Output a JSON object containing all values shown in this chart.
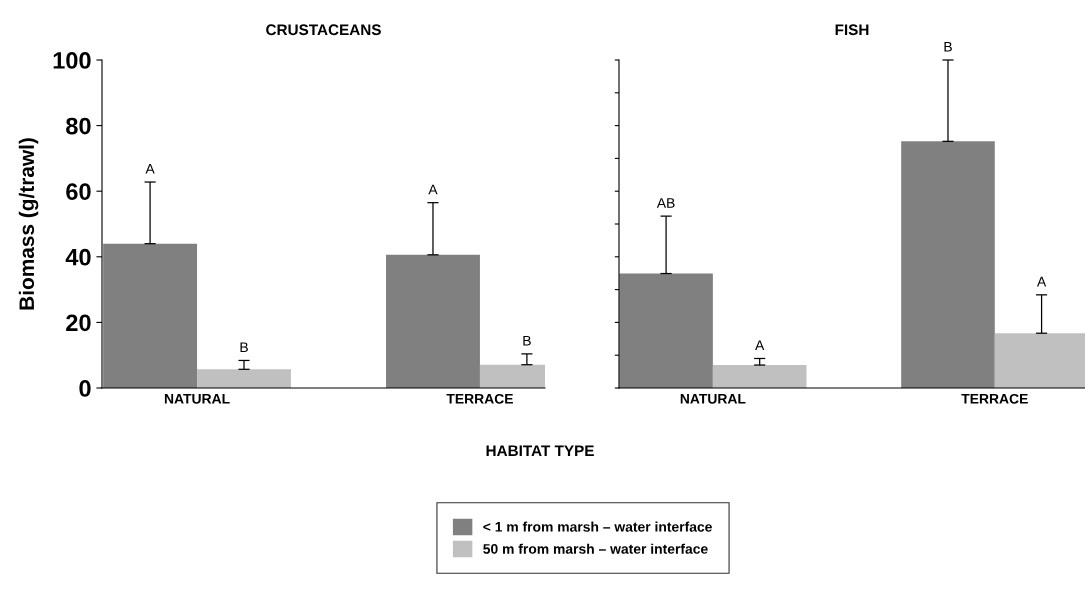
{
  "chart_data": [
    {
      "type": "bar",
      "title": "CRUSTACEANS",
      "xlabel": "HABITAT TYPE",
      "ylabel": "Biomass (g/trawl)",
      "categories": [
        "NATURAL",
        "TERRACE"
      ],
      "ylim": [
        0,
        100
      ],
      "yticks": [
        0,
        20,
        40,
        60,
        80,
        100
      ],
      "legend": "bottom",
      "grid": false,
      "series": [
        {
          "name": "< 1 m from marsh – water interface",
          "color": "#808080",
          "values": [
            44.0,
            40.6
          ],
          "errors": [
            [
              44.0,
              62.8
            ],
            [
              40.6,
              56.5
            ]
          ]
        },
        {
          "name": "50 m from marsh – water interface",
          "color": "#c0c0c0",
          "values": [
            5.7,
            7.1
          ],
          "errors": [
            [
              5.7,
              8.4
            ],
            [
              7.1,
              10.4
            ]
          ]
        }
      ],
      "annotations": [
        "A",
        "A",
        "B",
        "B"
      ]
    },
    {
      "type": "bar",
      "title": "FISH",
      "categories": [
        "NATURAL",
        "TERRACE"
      ],
      "ylim": [
        0,
        100
      ],
      "tick_labels": "x",
      "grid": false,
      "yticks": [
        {
          "value": 0,
          "label": null
        },
        {
          "value": 10,
          "label": null
        },
        {
          "value": 20,
          "label": null
        },
        {
          "value": 30,
          "label": null
        },
        {
          "value": 40,
          "label": null
        },
        {
          "value": 50,
          "label": null
        },
        {
          "value": 60,
          "label": null
        },
        {
          "value": 70,
          "label": null
        },
        {
          "value": 80,
          "label": null
        },
        {
          "value": 90,
          "label": null
        },
        {
          "value": 100,
          "label": null
        }
      ],
      "series": [
        {
          "color": "#808080",
          "values": [
            34.9,
            75.2
          ],
          "errors": [
            [
              34.9,
              52.4
            ],
            [
              75.2,
              100
            ]
          ]
        },
        {
          "color": "#c0c0c0",
          "values": [
            7.0,
            16.7
          ],
          "errors": [
            [
              7.0,
              9.0
            ],
            [
              16.7,
              28.4
            ]
          ]
        }
      ],
      "annotations": [
        "AB",
        "B",
        "A",
        "A"
      ]
    }
  ]
}
